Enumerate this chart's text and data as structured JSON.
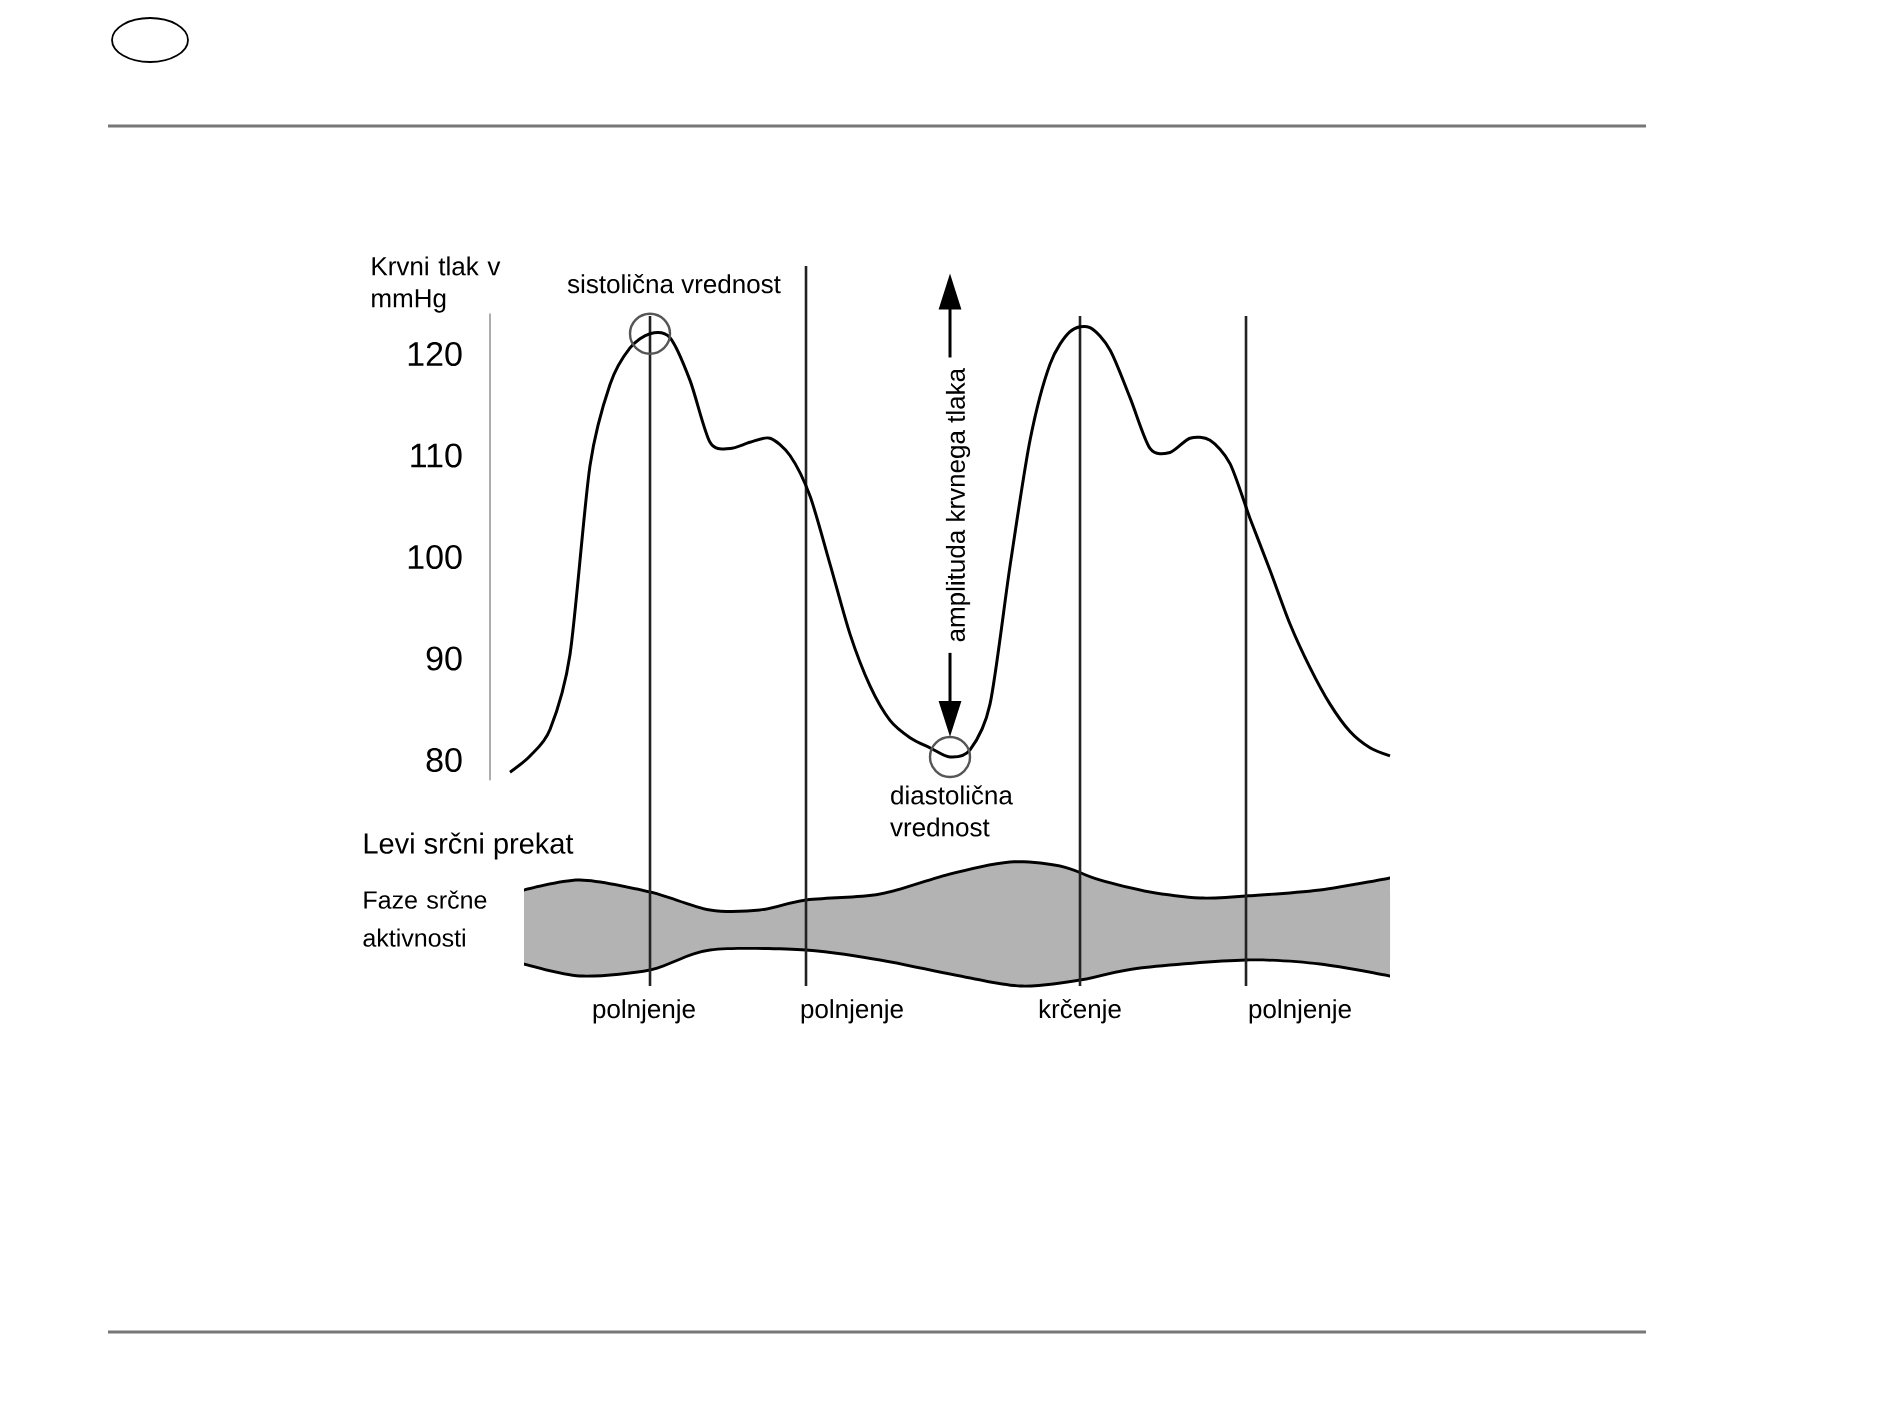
{
  "chart_data": {
    "type": "line",
    "ylabel": "Krvni tlak v mmHg",
    "categories": [
      null,
      null,
      null,
      null,
      null,
      null,
      null,
      null,
      null,
      null,
      null,
      null,
      null,
      null,
      null,
      null,
      null,
      null,
      null,
      null,
      null,
      null,
      null,
      null,
      null,
      null,
      null,
      null,
      null,
      null,
      null,
      null,
      null,
      null,
      null,
      null,
      null,
      null,
      null,
      null,
      null,
      null,
      null,
      null,
      null
    ],
    "values": [
      78.8,
      80.4,
      83.0,
      90.4,
      109.0,
      117.0,
      120.6,
      122.0,
      121.6,
      117.4,
      111.3,
      110.7,
      111.3,
      111.7,
      110.0,
      106.0,
      99.3,
      92.4,
      87.3,
      83.9,
      82.2,
      81.2,
      80.3,
      81.0,
      85.5,
      99.1,
      111.5,
      119.0,
      122.2,
      122.6,
      120.4,
      115.7,
      110.7,
      110.3,
      111.7,
      111.5,
      109.2,
      103.8,
      98.7,
      93.4,
      89.1,
      85.5,
      82.8,
      81.2,
      80.4
    ],
    "color": "#000000",
    "ylim": [
      78,
      124
    ],
    "yticks": [
      80,
      90,
      100,
      110,
      120
    ],
    "annotations": [
      {
        "text": "sistolična vrednost",
        "y": 122.0
      },
      {
        "text": "diastolična vrednost",
        "y": 80.3
      },
      "amplituda krvnega tlaka",
      "Levi srčni prekat",
      "Faze srčne aktivnosti",
      "polnjenje",
      "polnjenje",
      "krčenje",
      "polnjenje"
    ]
  }
}
